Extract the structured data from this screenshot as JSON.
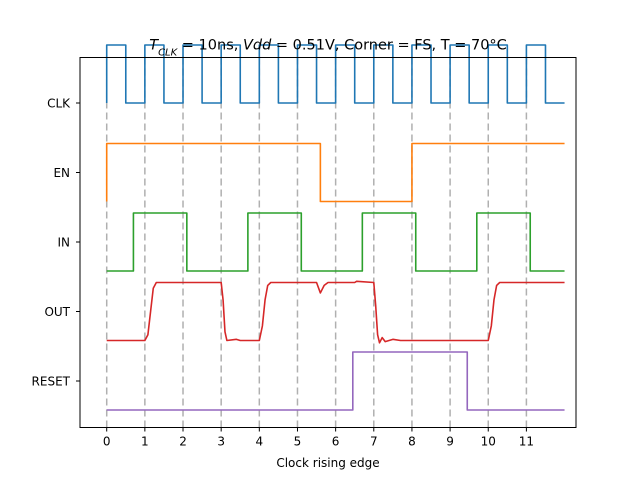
{
  "chart_data": {
    "type": "line",
    "title": {
      "t_symbol": "T",
      "t_subscript": "CLK",
      "t_value": " = 10ns, ",
      "vdd_symbol": "Vdd",
      "rest": " = 0.51V, Corner = FS, T = 70°C"
    },
    "xlabel": "Clock rising edge",
    "ylabel": "",
    "xlim": [
      -0.7,
      12.3
    ],
    "x_ticks": [
      "0",
      "1",
      "2",
      "3",
      "4",
      "5",
      "6",
      "7",
      "8",
      "9",
      "10",
      "11"
    ],
    "grid": "vertical dashed lines at each clock rising edge",
    "colors": {
      "CLK": "#1f77b4",
      "EN": "#ff7f0e",
      "IN": "#2ca02c",
      "OUT": "#d62728",
      "RESET": "#9467bd"
    },
    "series": [
      {
        "name": "CLK",
        "points": [
          [
            0,
            0.5
          ],
          [
            0,
            1.5
          ],
          [
            0.5,
            1.5
          ],
          [
            0.5,
            0.5
          ],
          [
            1,
            0.5
          ],
          [
            1,
            1.5
          ],
          [
            1.5,
            1.5
          ],
          [
            1.5,
            0.5
          ],
          [
            2,
            0.5
          ],
          [
            2,
            1.5
          ],
          [
            2.5,
            1.5
          ],
          [
            2.5,
            0.5
          ],
          [
            3,
            0.5
          ],
          [
            3,
            1.5
          ],
          [
            3.5,
            1.5
          ],
          [
            3.5,
            0.5
          ],
          [
            4,
            0.5
          ],
          [
            4,
            1.5
          ],
          [
            4.5,
            1.5
          ],
          [
            4.5,
            0.5
          ],
          [
            5,
            0.5
          ],
          [
            5,
            1.5
          ],
          [
            5.5,
            1.5
          ],
          [
            5.5,
            0.5
          ],
          [
            6,
            0.5
          ],
          [
            6,
            1.5
          ],
          [
            6.5,
            1.5
          ],
          [
            6.5,
            0.5
          ],
          [
            7,
            0.5
          ],
          [
            7,
            1.5
          ],
          [
            7.5,
            1.5
          ],
          [
            7.5,
            0.5
          ],
          [
            8,
            0.5
          ],
          [
            8,
            1.5
          ],
          [
            8.5,
            1.5
          ],
          [
            8.5,
            0.5
          ],
          [
            9,
            0.5
          ],
          [
            9,
            1.5
          ],
          [
            9.5,
            1.5
          ],
          [
            9.5,
            0.5
          ],
          [
            10,
            0.5
          ],
          [
            10,
            1.5
          ],
          [
            10.5,
            1.5
          ],
          [
            10.5,
            0.5
          ],
          [
            11,
            0.5
          ],
          [
            11,
            1.5
          ],
          [
            11.5,
            1.5
          ],
          [
            11.5,
            0.5
          ],
          [
            12,
            0.5
          ]
        ]
      },
      {
        "name": "EN",
        "points": [
          [
            0,
            0
          ],
          [
            0,
            1
          ],
          [
            5.6,
            1
          ],
          [
            5.6,
            0
          ],
          [
            8,
            0
          ],
          [
            8,
            1
          ],
          [
            12,
            1
          ]
        ]
      },
      {
        "name": "IN",
        "points": [
          [
            0,
            0
          ],
          [
            0.7,
            0
          ],
          [
            0.7,
            1
          ],
          [
            2.1,
            1
          ],
          [
            2.1,
            0
          ],
          [
            3.7,
            0
          ],
          [
            3.7,
            1
          ],
          [
            5.1,
            1
          ],
          [
            5.1,
            0
          ],
          [
            6.7,
            0
          ],
          [
            6.7,
            1
          ],
          [
            8.1,
            1
          ],
          [
            8.1,
            0
          ],
          [
            9.7,
            0
          ],
          [
            9.7,
            1
          ],
          [
            11.1,
            1
          ],
          [
            11.1,
            0
          ],
          [
            12,
            0
          ]
        ]
      },
      {
        "name": "OUT",
        "points": [
          [
            0,
            0
          ],
          [
            1.0,
            0
          ],
          [
            1.08,
            0.1
          ],
          [
            1.15,
            0.5
          ],
          [
            1.22,
            0.9
          ],
          [
            1.3,
            1
          ],
          [
            3.0,
            1
          ],
          [
            3.05,
            0.7
          ],
          [
            3.1,
            0.15
          ],
          [
            3.15,
            0
          ],
          [
            3.4,
            0.02
          ],
          [
            3.5,
            0
          ],
          [
            4.0,
            0
          ],
          [
            4.08,
            0.25
          ],
          [
            4.15,
            0.7
          ],
          [
            4.22,
            0.95
          ],
          [
            4.3,
            1
          ],
          [
            5.5,
            1
          ],
          [
            5.6,
            0.82
          ],
          [
            5.7,
            0.95
          ],
          [
            5.8,
            1
          ],
          [
            6.5,
            1
          ],
          [
            6.55,
            1.02
          ],
          [
            7.0,
            1
          ],
          [
            7.05,
            0.6
          ],
          [
            7.1,
            0.1
          ],
          [
            7.15,
            -0.04
          ],
          [
            7.22,
            0.05
          ],
          [
            7.3,
            -0.02
          ],
          [
            7.5,
            0.02
          ],
          [
            7.7,
            0
          ],
          [
            10.0,
            0
          ],
          [
            10.08,
            0.25
          ],
          [
            10.15,
            0.7
          ],
          [
            10.22,
            0.95
          ],
          [
            10.3,
            1
          ],
          [
            12,
            1
          ]
        ]
      },
      {
        "name": "RESET",
        "points": [
          [
            0,
            0
          ],
          [
            6.45,
            0
          ],
          [
            6.45,
            1
          ],
          [
            9.45,
            1
          ],
          [
            9.45,
            0
          ],
          [
            12,
            0
          ]
        ]
      }
    ]
  }
}
